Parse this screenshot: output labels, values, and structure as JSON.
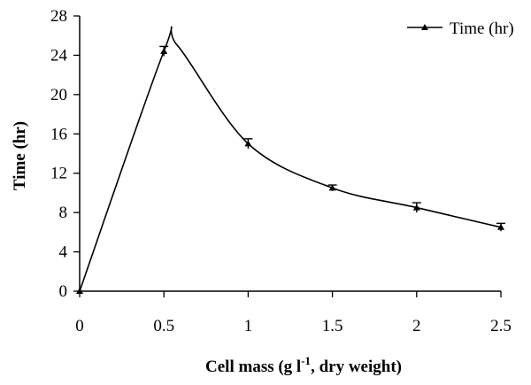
{
  "chart_data": {
    "type": "line",
    "xlabel_main": "Cell mass (g l",
    "xlabel_sup": "-1",
    "xlabel_end": ", dry weight)",
    "ylabel": "Time (hr)",
    "xlim": [
      0,
      2.5
    ],
    "ylim": [
      0,
      28
    ],
    "x_ticks": [
      0,
      0.5,
      1,
      1.5,
      2,
      2.5
    ],
    "x_tick_labels": [
      "0",
      "0.5",
      "1",
      "1.5",
      "2",
      "2.5"
    ],
    "y_ticks": [
      0,
      4,
      8,
      12,
      16,
      20,
      24,
      28
    ],
    "y_tick_labels": [
      "0",
      "4",
      "8",
      "12",
      "16",
      "20",
      "24",
      "28"
    ],
    "grid": false,
    "legend_position": "top-right",
    "series": [
      {
        "name": "Time (hr)",
        "x": [
          0,
          0.5,
          1,
          1.5,
          2,
          2.5
        ],
        "y": [
          0,
          24.4,
          15.0,
          10.5,
          8.5,
          6.5
        ],
        "error": [
          0,
          0.5,
          0.5,
          0.3,
          0.5,
          0.4
        ],
        "color": "#000000",
        "marker": "triangle"
      }
    ],
    "curve_peak": {
      "x": 0.58,
      "y": 25.0
    }
  }
}
